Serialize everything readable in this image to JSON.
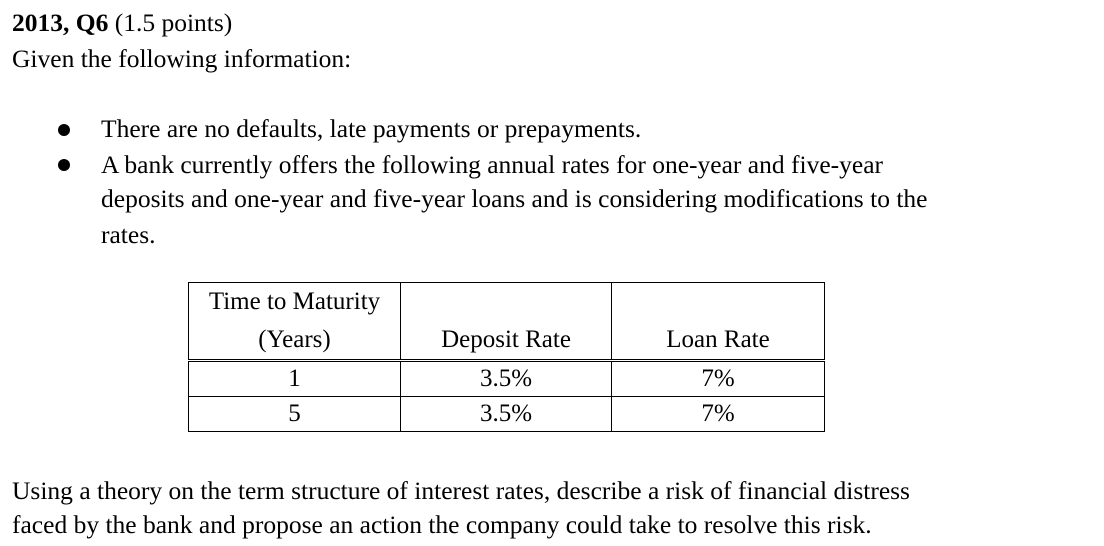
{
  "heading": {
    "label": "2013, Q6",
    "points": "(1.5 points)"
  },
  "intro": "Given the following information:",
  "bullets": [
    "There are no defaults, late payments or prepayments.",
    {
      "line1": "A bank currently offers the following annual rates for one-year and five-year",
      "line2": "deposits and one-year and five-year loans and is considering modifications to the",
      "line3": "rates."
    }
  ],
  "table": {
    "headers": {
      "col1_line1": "Time to Maturity",
      "col1_line2": "(Years)",
      "col2": "Deposit Rate",
      "col3": "Loan Rate"
    },
    "rows": [
      [
        "1",
        "3.5%",
        "7%"
      ],
      [
        "5",
        "3.5%",
        "7%"
      ]
    ]
  },
  "question": {
    "line1": "Using a theory on the term structure of interest rates, describe a risk of financial distress",
    "line2": "faced by the bank and propose an action the company could take to resolve this risk."
  }
}
